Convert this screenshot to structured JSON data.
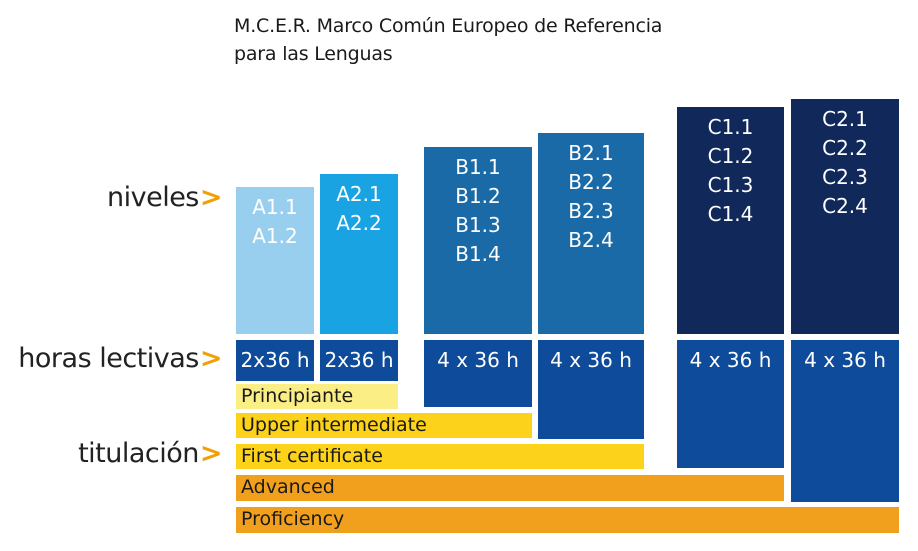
{
  "title": {
    "line1": "M.C.E.R. Marco Común Europeo de Referencia",
    "line2": "para las Lenguas"
  },
  "row_labels": {
    "niveles": "niveles",
    "horas": "horas lectivas",
    "titulacion": "titulación",
    "arrow": ">"
  },
  "columns": [
    {
      "levels": [
        "A1.1",
        "A1.2"
      ],
      "hours": "2x36 h",
      "color": "#99cfee"
    },
    {
      "levels": [
        "A2.1",
        "A2.2"
      ],
      "hours": "2x36 h",
      "color": "#1aa3e3"
    },
    {
      "levels": [
        "B1.1",
        "B1.2",
        "B1.3",
        "B1.4"
      ],
      "hours": "4 x 36 h",
      "color": "#1a6aa8"
    },
    {
      "levels": [
        "B2.1",
        "B2.2",
        "B2.3",
        "B2.4"
      ],
      "hours": "4 x 36 h",
      "color": "#1a6aa8"
    },
    {
      "levels": [
        "C1.1",
        "C1.2",
        "C1.3",
        "C1.4"
      ],
      "hours": "4 x 36 h",
      "color": "#10285a"
    },
    {
      "levels": [
        "C2.1",
        "C2.2",
        "C2.3",
        "C2.4"
      ],
      "hours": "4 x 36 h",
      "color": "#10285a"
    }
  ],
  "hours_color": "#0e4b9a",
  "certificates": [
    {
      "label": "Principiante",
      "color": "#fbee84"
    },
    {
      "label": "Upper intermediate",
      "color": "#fcd21a"
    },
    {
      "label": "First certificate",
      "color": "#fcd21a"
    },
    {
      "label": "Advanced",
      "color": "#f1a01e"
    },
    {
      "label": "Proficiency",
      "color": "#f1a01e"
    }
  ]
}
